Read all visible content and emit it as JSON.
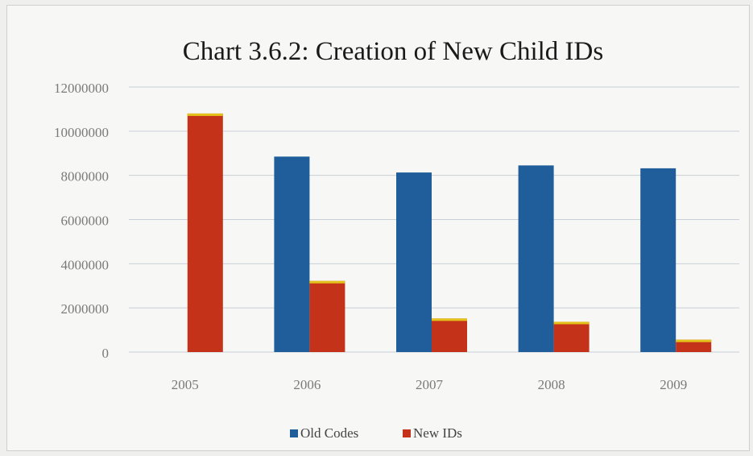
{
  "chart_data": {
    "type": "bar",
    "title": "Chart 3.6.2: Creation of New Child IDs",
    "xlabel": "",
    "ylabel": "",
    "categories": [
      "2005",
      "2006",
      "2007",
      "2008",
      "2009"
    ],
    "series": [
      {
        "name": "Old Codes",
        "color": "#1f5e9a",
        "values": [
          0,
          8850000,
          8130000,
          8450000,
          8320000
        ]
      },
      {
        "name": "New IDs",
        "color": "#c5321a",
        "values": [
          10800000,
          3220000,
          1520000,
          1370000,
          560000
        ]
      }
    ],
    "ylim": [
      0,
      12000000
    ],
    "yticks": [
      "0",
      "2000000",
      "4000000",
      "6000000",
      "8000000",
      "10000000",
      "12000000"
    ],
    "grid": true,
    "legend_position": "bottom"
  }
}
